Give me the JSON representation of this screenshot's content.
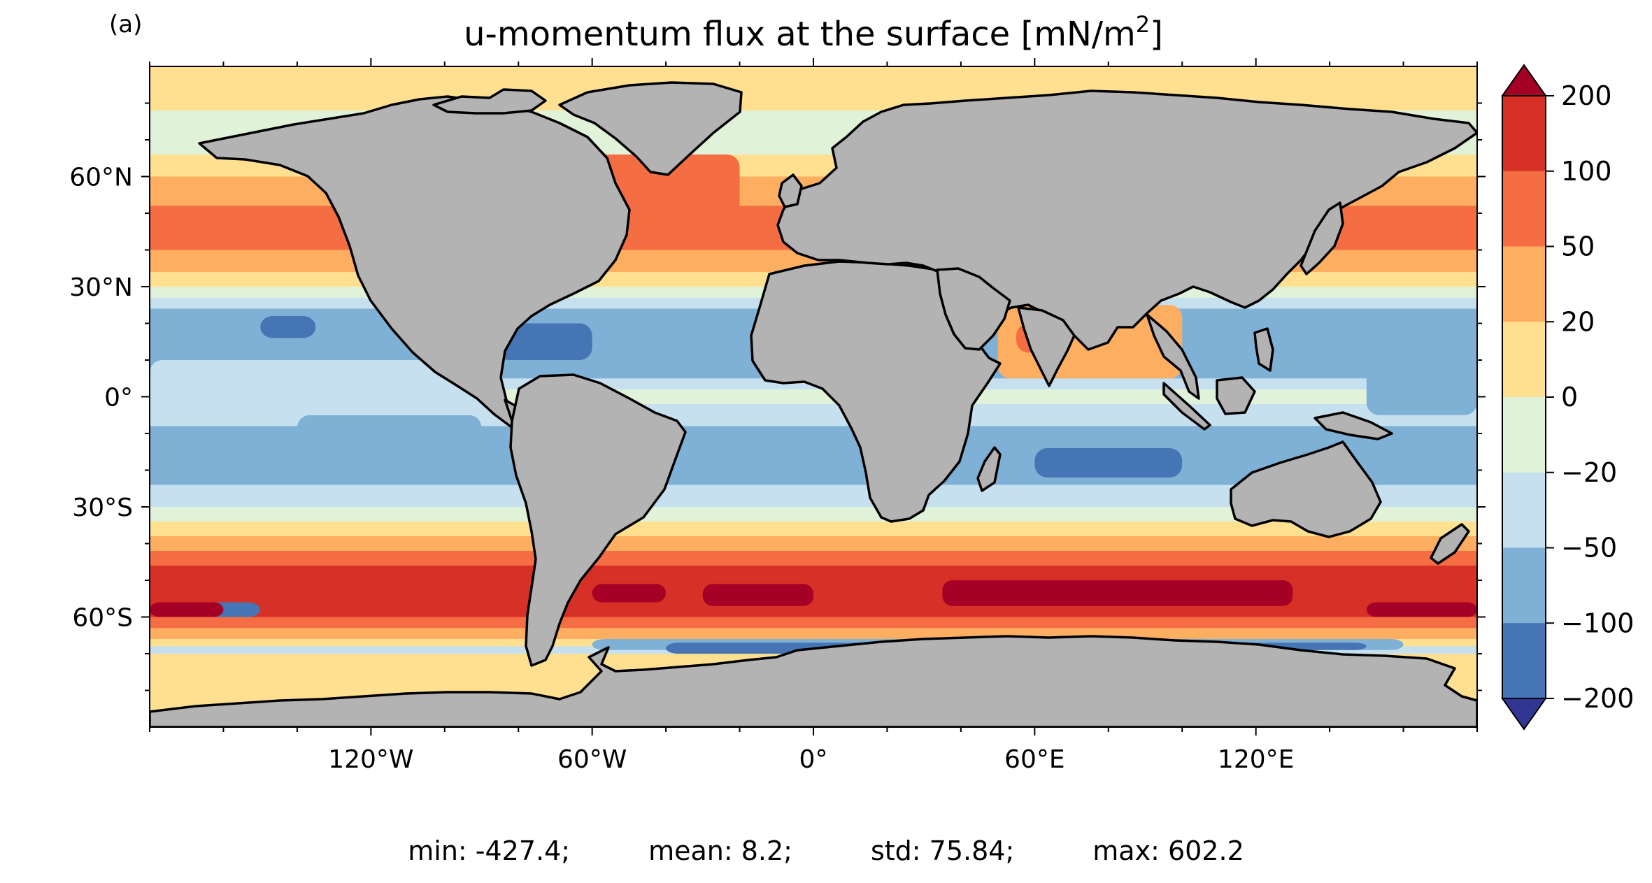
{
  "panel_label": "(a)",
  "title": "u-momentum flux at the surface [mN/m²]",
  "map": {
    "projection": "equirectangular",
    "lon_range": [
      -180,
      180
    ],
    "lat_range": [
      -90,
      90
    ],
    "land_color": "#b3b3b3",
    "coastline_color": "#000000",
    "x_ticks": [
      "120°W",
      "60°W",
      "0°",
      "60°E",
      "120°E"
    ],
    "y_ticks": [
      "60°N",
      "30°N",
      "0°",
      "30°S",
      "60°S"
    ]
  },
  "colorbar": {
    "levels": [
      "200",
      "100",
      "50",
      "20",
      "0",
      "−20",
      "−50",
      "−100",
      "−200"
    ],
    "colors": [
      "#d73027",
      "#f46d43",
      "#fdae61",
      "#fee090",
      "#e0f3d8",
      "#c6e0ef",
      "#7fb0d6",
      "#4575b4"
    ],
    "extend_max_color": "#a50026",
    "extend_min_color": "#313695",
    "extend": "both"
  },
  "stats": {
    "min": "min: -427.4;",
    "mean": "mean: 8.2;",
    "std": "std: 75.84;",
    "max": "max: 602.2"
  },
  "chart_data": {
    "type": "heatmap",
    "title": "u-momentum flux at the surface [mN/m²]",
    "units": "mN/m²",
    "color_levels": [
      -200,
      -100,
      -50,
      -20,
      0,
      20,
      50,
      100,
      200
    ],
    "zonal_bands_approx": [
      {
        "lat": [
          60,
          90
        ],
        "value_range": [
          0,
          20
        ]
      },
      {
        "lat": [
          35,
          60
        ],
        "value_range": [
          50,
          100
        ]
      },
      {
        "lat": [
          5,
          30
        ],
        "value_range": [
          -100,
          -50
        ]
      },
      {
        "lat": [
          -30,
          5
        ],
        "value_range": [
          -100,
          -20
        ]
      },
      {
        "lat": [
          -65,
          -35
        ],
        "value_range": [
          100,
          200
        ]
      },
      {
        "lat": [
          -75,
          -65
        ],
        "value_range": [
          -200,
          -50
        ]
      }
    ],
    "stats": {
      "min": -427.4,
      "mean": 8.2,
      "std": 75.84,
      "max": 602.2
    }
  }
}
